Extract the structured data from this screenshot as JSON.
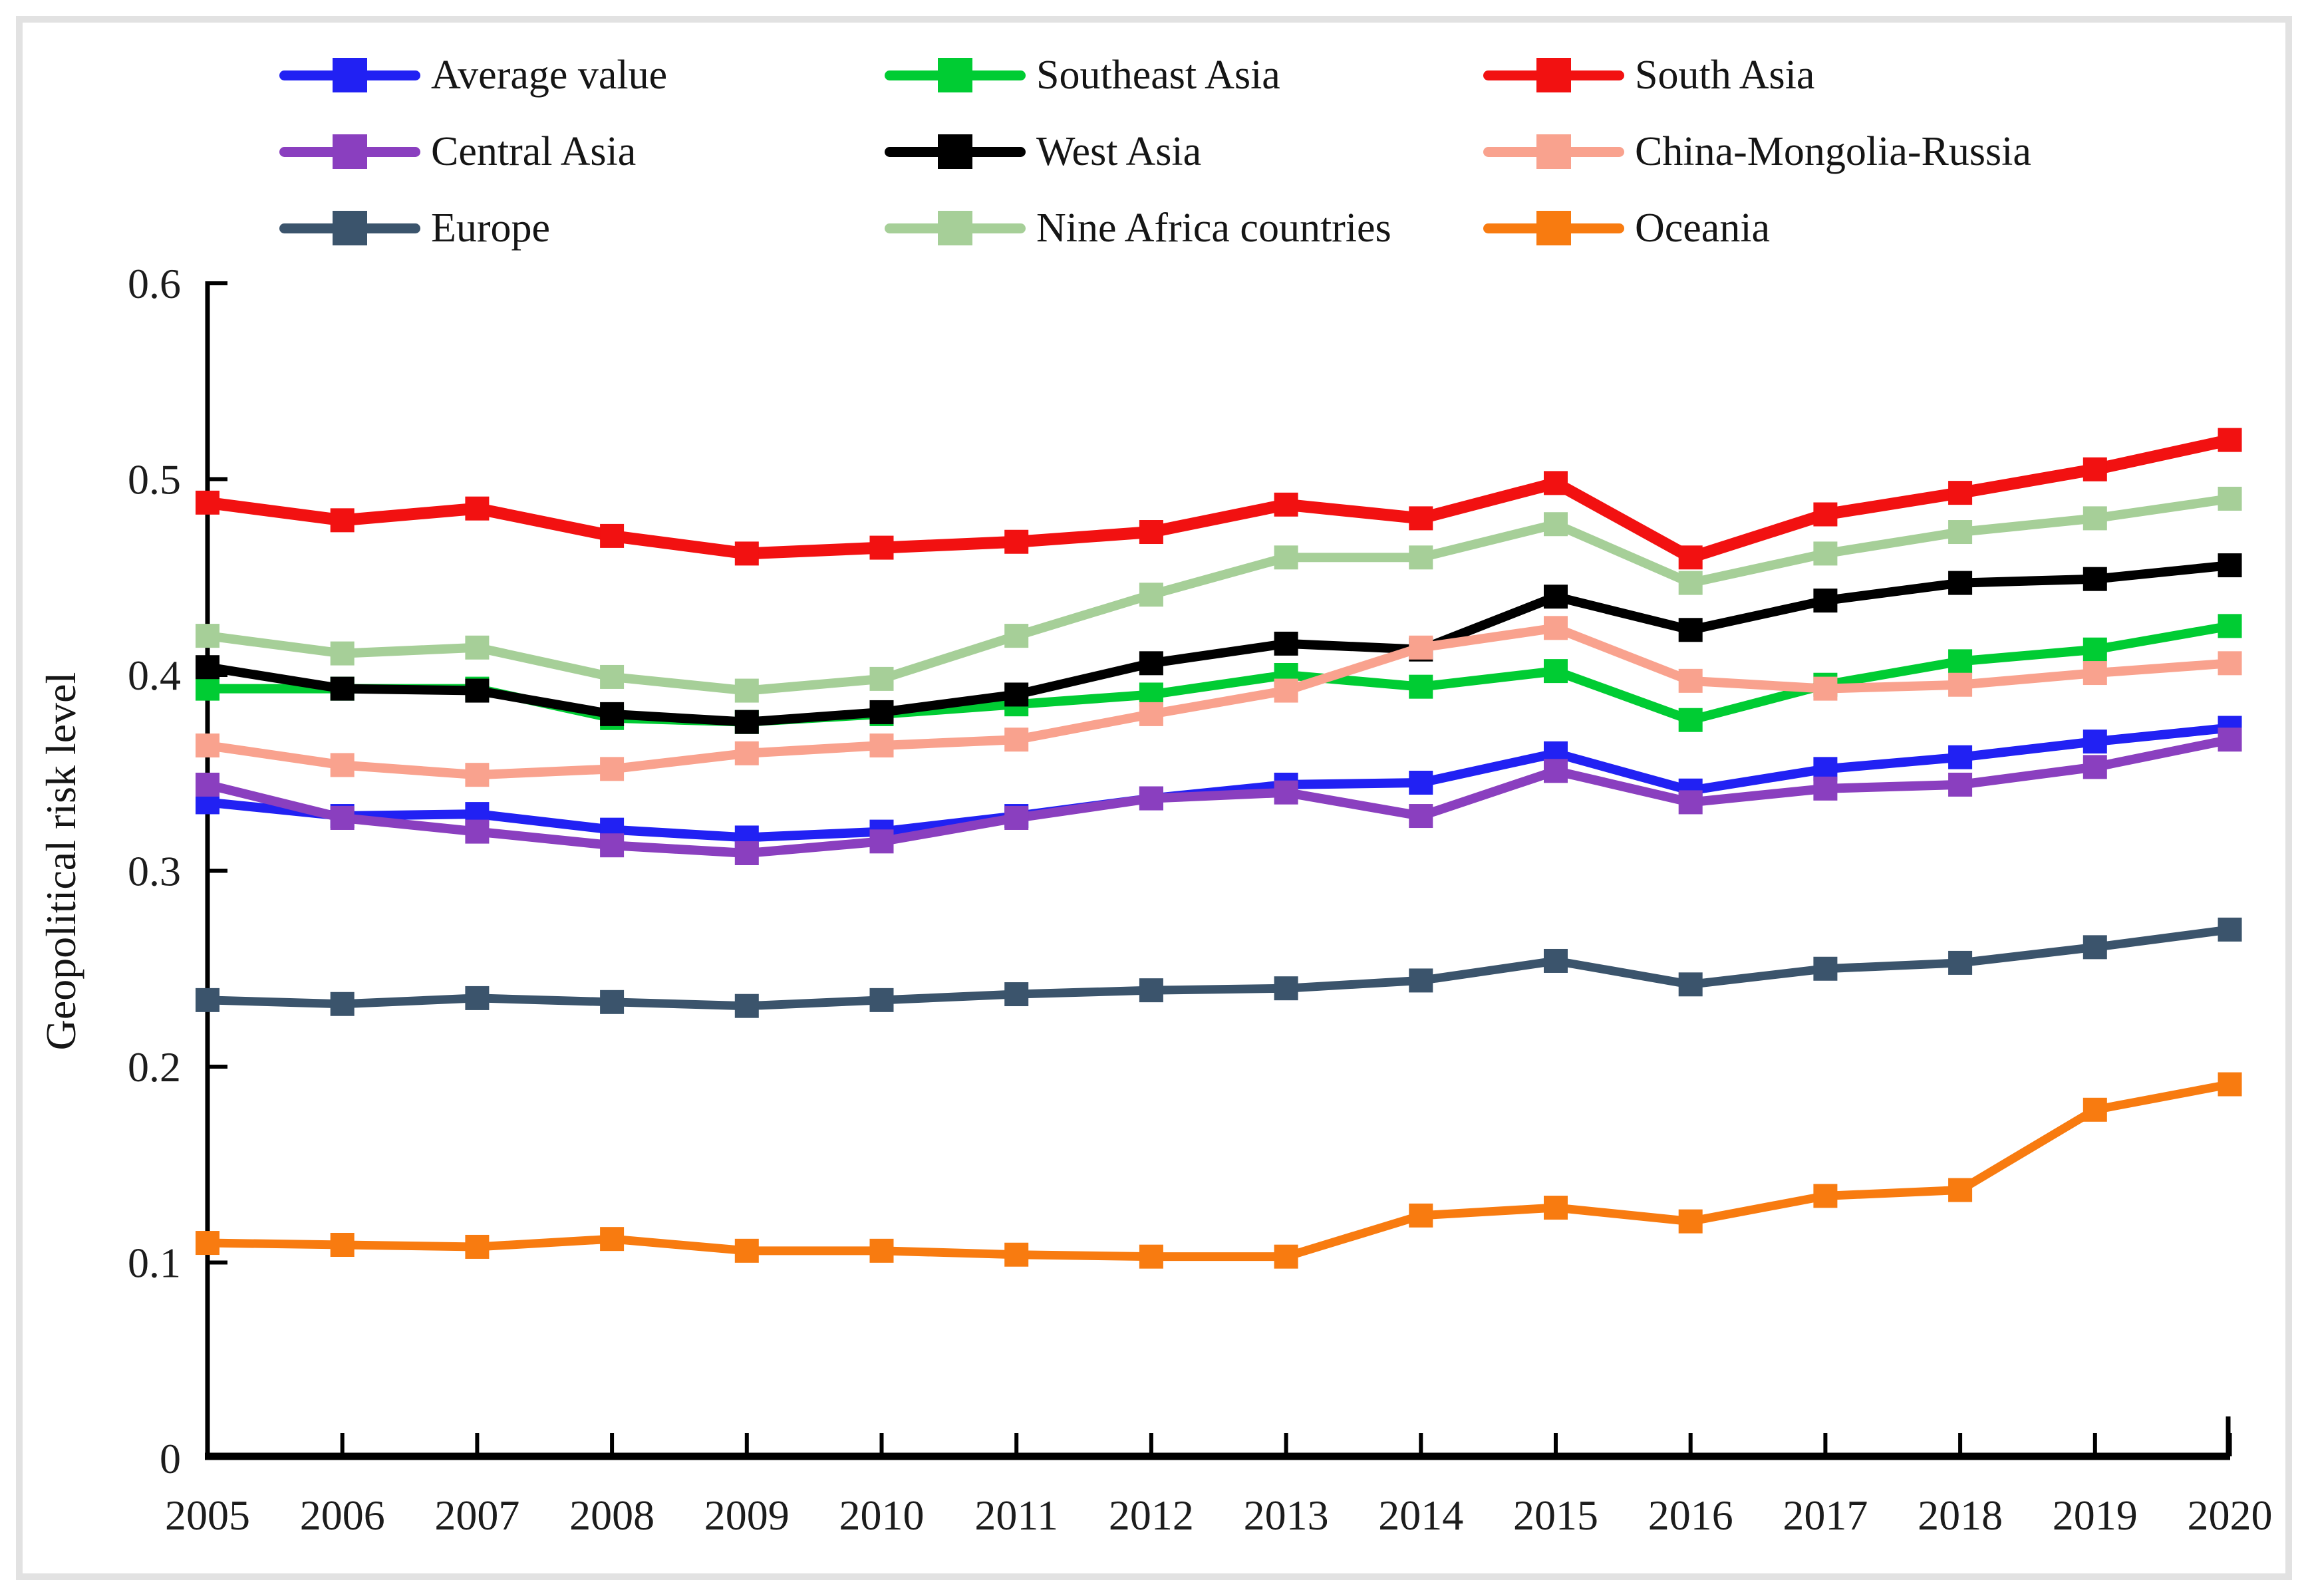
{
  "figure": {
    "border_color": "#e2e2e2",
    "background": "#ffffff"
  },
  "chart_data": {
    "type": "line",
    "title": "",
    "xlabel": "",
    "ylabel": "Geopolitical risk level",
    "ylim": [
      0,
      0.6
    ],
    "y_ticks": [
      "0",
      "0.1",
      "0.2",
      "0.3",
      "0.4",
      "0.5",
      "0.6"
    ],
    "x": [
      "2005",
      "2006",
      "2007",
      "2008",
      "2009",
      "2010",
      "2011",
      "2012",
      "2013",
      "2014",
      "2015",
      "2016",
      "2017",
      "2018",
      "2019",
      "2020"
    ],
    "grid": false,
    "legend_position": "top",
    "marker": "square",
    "series": [
      {
        "name": "Average value",
        "color": "#2121f3",
        "values": [
          0.335,
          0.328,
          0.329,
          0.321,
          0.317,
          0.32,
          0.328,
          0.337,
          0.344,
          0.345,
          0.36,
          0.341,
          0.352,
          0.358,
          0.366,
          0.373
        ]
      },
      {
        "name": "Southeast Asia",
        "color": "#00cc33",
        "values": [
          0.393,
          0.393,
          0.393,
          0.378,
          0.376,
          0.38,
          0.385,
          0.39,
          0.4,
          0.394,
          0.402,
          0.377,
          0.395,
          0.407,
          0.413,
          0.425
        ]
      },
      {
        "name": "South Asia",
        "color": "#f21111",
        "values": [
          0.488,
          0.479,
          0.485,
          0.471,
          0.462,
          0.465,
          0.468,
          0.473,
          0.487,
          0.48,
          0.498,
          0.46,
          0.482,
          0.493,
          0.505,
          0.52
        ]
      },
      {
        "name": "Central Asia",
        "color": "#8a3fbf",
        "values": [
          0.344,
          0.327,
          0.32,
          0.313,
          0.309,
          0.315,
          0.327,
          0.337,
          0.34,
          0.328,
          0.351,
          0.335,
          0.342,
          0.344,
          0.353,
          0.367
        ]
      },
      {
        "name": "West Asia",
        "color": "#000000",
        "values": [
          0.404,
          0.393,
          0.392,
          0.38,
          0.376,
          0.381,
          0.39,
          0.406,
          0.416,
          0.413,
          0.44,
          0.423,
          0.438,
          0.447,
          0.449,
          0.456
        ]
      },
      {
        "name": "China-Mongolia-Russia",
        "color": "#f9a28e",
        "values": [
          0.364,
          0.354,
          0.349,
          0.352,
          0.36,
          0.364,
          0.367,
          0.38,
          0.392,
          0.414,
          0.424,
          0.397,
          0.393,
          0.395,
          0.401,
          0.406
        ]
      },
      {
        "name": "Europe",
        "color": "#3b546c",
        "values": [
          0.234,
          0.232,
          0.235,
          0.233,
          0.231,
          0.234,
          0.237,
          0.239,
          0.24,
          0.244,
          0.254,
          0.242,
          0.25,
          0.253,
          0.261,
          0.27
        ]
      },
      {
        "name": "Nine Africa countries",
        "color": "#a6cf98",
        "values": [
          0.42,
          0.411,
          0.414,
          0.399,
          0.392,
          0.398,
          0.42,
          0.441,
          0.46,
          0.46,
          0.477,
          0.447,
          0.462,
          0.473,
          0.48,
          0.49
        ]
      },
      {
        "name": "Oceania",
        "color": "#f87b10",
        "values": [
          0.11,
          0.109,
          0.108,
          0.112,
          0.106,
          0.106,
          0.104,
          0.103,
          0.103,
          0.124,
          0.128,
          0.121,
          0.134,
          0.137,
          0.178,
          0.191
        ]
      }
    ]
  }
}
